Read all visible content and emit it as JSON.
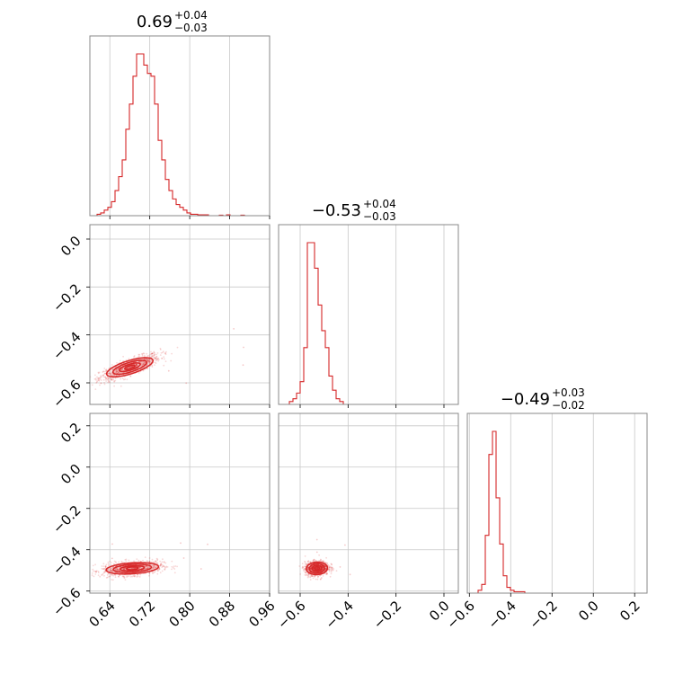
{
  "chart_data": {
    "type": "corner",
    "color": "#d62728",
    "parameters": [
      {
        "title_main": "0.69",
        "title_plus": "+0.04",
        "title_minus": "−0.03",
        "ticks": [
          0.64,
          0.72,
          0.8,
          0.88,
          0.96
        ],
        "tick_labels": [
          "0.64",
          "0.72",
          "0.80",
          "0.88",
          "0.96"
        ],
        "range": [
          0.6,
          0.96
        ]
      },
      {
        "title_main": "−0.53",
        "title_plus": "+0.04",
        "title_minus": "−0.03",
        "ticks": [
          -0.6,
          -0.4,
          -0.2,
          0.0
        ],
        "tick_labels": [
          "−0.6",
          "−0.4",
          "−0.2",
          "0.0"
        ],
        "range": [
          -0.69,
          0.06
        ]
      },
      {
        "title_main": "−0.49",
        "title_plus": "+0.03",
        "title_minus": "−0.02",
        "ticks": [
          -0.6,
          -0.4,
          -0.2,
          0.0,
          0.2
        ],
        "tick_labels": [
          "−0.6",
          "−0.4",
          "−0.2",
          "0.0",
          "0.2"
        ],
        "range": [
          -0.61,
          0.26
        ]
      }
    ],
    "row_tick_labels": {
      "row1": {
        "ticks": [
          0.0,
          -0.2,
          -0.4,
          -0.6
        ],
        "labels": [
          "0.0",
          "−0.2",
          "−0.4",
          "−0.6"
        ],
        "range": [
          -0.69,
          0.06
        ]
      },
      "row2": {
        "ticks": [
          0.2,
          0.0,
          -0.2,
          -0.4,
          -0.6
        ],
        "labels": [
          "0.2",
          "0.0",
          "−0.2",
          "−0.4",
          "−0.6"
        ],
        "range": [
          -0.61,
          0.26
        ]
      }
    },
    "histograms": [
      {
        "param": 0,
        "bin_start": 0.6,
        "bin_width": 0.0072,
        "counts": [
          0,
          0,
          0.5,
          1,
          2,
          3,
          5,
          9,
          14,
          20,
          31,
          40,
          50,
          58,
          58,
          54,
          51,
          50,
          40,
          27,
          20,
          13,
          9,
          6,
          4,
          3,
          2,
          1,
          0.5,
          0.5,
          0.3,
          0.3,
          0.3,
          0,
          0,
          0,
          0.2,
          0,
          0.3,
          0,
          0,
          0,
          0.2,
          0,
          0,
          0,
          0,
          0,
          0,
          0,
          0
        ]
      },
      {
        "param": 1,
        "bin_start": -0.69,
        "bin_width": 0.015,
        "counts": [
          0,
          0,
          0,
          1,
          2,
          4,
          8,
          20,
          57,
          57,
          48,
          35,
          26,
          20,
          10,
          5,
          2,
          1,
          0,
          0,
          0,
          0,
          0,
          0,
          0,
          0,
          0,
          0,
          0,
          0,
          0,
          0,
          0,
          0,
          0,
          0,
          0,
          0,
          0,
          0,
          0,
          0,
          0,
          0,
          0,
          0,
          0,
          0,
          0,
          0
        ]
      },
      {
        "param": 2,
        "bin_start": -0.61,
        "bin_width": 0.0174,
        "counts": [
          0,
          0,
          0,
          1,
          3,
          20,
          48,
          56,
          33,
          17,
          6,
          2,
          1,
          0.5,
          0.5,
          0.5,
          0,
          0,
          0,
          0,
          0,
          0,
          0,
          0,
          0,
          0,
          0,
          0,
          0,
          0,
          0,
          0,
          0,
          0,
          0,
          0,
          0,
          0,
          0,
          0,
          0,
          0,
          0,
          0,
          0,
          0,
          0,
          0,
          0,
          0,
          0
        ]
      }
    ],
    "pairs": [
      {
        "x_param": 0,
        "y_param": 1,
        "center": [
          0.68,
          -0.535
        ],
        "contour_half_widths": [
          [
            0.055,
            0.05
          ],
          [
            0.04,
            0.036
          ],
          [
            0.025,
            0.022
          ],
          [
            0.012,
            0.011
          ]
        ],
        "correlation": 0.8
      },
      {
        "x_param": 0,
        "y_param": 2,
        "center": [
          0.685,
          -0.49
        ],
        "contour_half_widths": [
          [
            0.055,
            0.032
          ],
          [
            0.04,
            0.023
          ],
          [
            0.025,
            0.014
          ],
          [
            0.012,
            0.007
          ]
        ],
        "correlation": 0.3
      },
      {
        "x_param": 1,
        "y_param": 2,
        "center": [
          -0.53,
          -0.49
        ],
        "contour_half_widths": [
          [
            0.045,
            0.032
          ],
          [
            0.032,
            0.024
          ],
          [
            0.02,
            0.015
          ],
          [
            0.01,
            0.008
          ]
        ],
        "correlation": 0.1
      }
    ],
    "grid": true
  }
}
